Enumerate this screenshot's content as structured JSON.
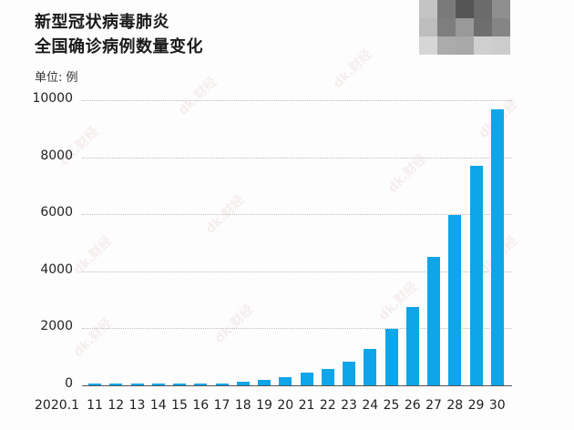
{
  "header": {
    "title_line1": "新型冠状病毒肺炎",
    "title_line2": "全国确诊病例数量变化",
    "unit_label": "单位: 例"
  },
  "watermark": "dk.财经",
  "colors": {
    "bar": "#0ea5e9",
    "axis": "#555555",
    "grid": "#bbbbbb"
  },
  "chart_data": {
    "type": "bar",
    "title": "新型冠状病毒肺炎 全国确诊病例数量变化",
    "xlabel": "",
    "ylabel": "单位: 例",
    "x_prefix_label": "2020.1",
    "categories": [
      "11",
      "12",
      "13",
      "14",
      "15",
      "16",
      "17",
      "18",
      "19",
      "20",
      "21",
      "22",
      "23",
      "24",
      "25",
      "26",
      "27",
      "28",
      "29",
      "30"
    ],
    "values": [
      41,
      41,
      41,
      41,
      41,
      45,
      62,
      121,
      198,
      291,
      440,
      571,
      830,
      1287,
      1975,
      2744,
      4515,
      5974,
      7711,
      9692
    ],
    "yticks": [
      "0",
      "2000",
      "4000",
      "6000",
      "8000",
      "10000"
    ],
    "ylim": [
      0,
      10000
    ],
    "grid": true,
    "legend": null
  }
}
